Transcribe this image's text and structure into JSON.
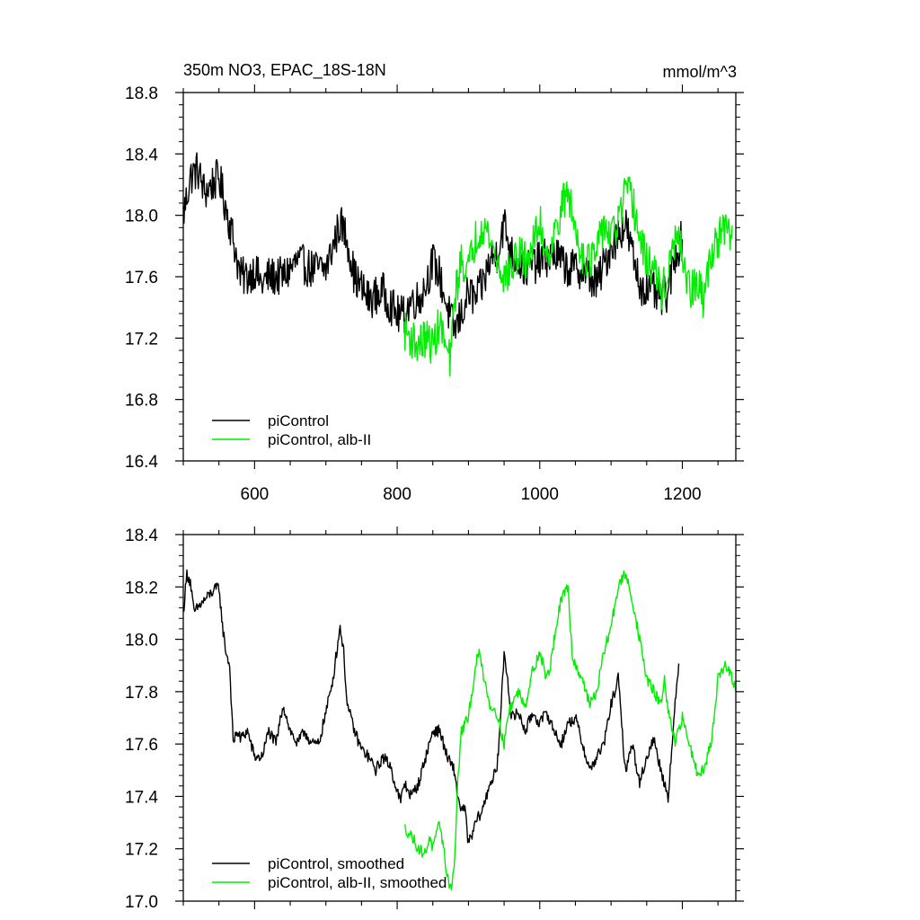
{
  "chart_data": [
    {
      "type": "line",
      "title": "350m NO3, EPAC_18S-18N",
      "units": "mmol/m^3",
      "xlim": [
        500,
        1275
      ],
      "ylim": [
        16.4,
        18.8
      ],
      "xticks": [
        600,
        800,
        1000,
        1200
      ],
      "yticks": [
        16.4,
        16.8,
        17.2,
        17.6,
        18.0,
        18.4,
        18.8
      ],
      "ytick_labels": [
        "16.4",
        "16.8",
        "17.2",
        "17.6",
        "18.0",
        "18.4",
        "18.8"
      ],
      "legend_position": "bottom-left",
      "series": [
        {
          "name": "piControl",
          "color": "#000000",
          "x": [
            500,
            510,
            520,
            530,
            540,
            550,
            560,
            570,
            580,
            590,
            600,
            610,
            620,
            640,
            660,
            680,
            700,
            710,
            720,
            730,
            740,
            760,
            780,
            800,
            810,
            820,
            830,
            840,
            850,
            860,
            870,
            880,
            890,
            900,
            910,
            920,
            930,
            940,
            950,
            960,
            980,
            1000,
            1020,
            1040,
            1060,
            1080,
            1100,
            1120,
            1140,
            1160,
            1170,
            1180,
            1190,
            1200
          ],
          "y": [
            18.0,
            18.25,
            18.3,
            18.15,
            18.2,
            18.25,
            18.05,
            17.85,
            17.6,
            17.6,
            17.65,
            17.55,
            17.6,
            17.6,
            17.7,
            17.65,
            17.65,
            17.8,
            17.95,
            17.85,
            17.6,
            17.45,
            17.5,
            17.35,
            17.35,
            17.45,
            17.45,
            17.55,
            17.7,
            17.6,
            17.4,
            17.25,
            17.35,
            17.5,
            17.45,
            17.55,
            17.7,
            17.75,
            17.95,
            17.75,
            17.65,
            17.7,
            17.75,
            17.65,
            17.65,
            17.55,
            17.8,
            17.95,
            17.55,
            17.5,
            17.45,
            17.5,
            17.75,
            17.85
          ]
        },
        {
          "name": "piControl, alb-II",
          "color": "#00ee00",
          "x": [
            810,
            820,
            830,
            840,
            850,
            860,
            870,
            875,
            880,
            890,
            900,
            910,
            920,
            930,
            940,
            950,
            960,
            970,
            980,
            990,
            1000,
            1010,
            1020,
            1030,
            1040,
            1050,
            1060,
            1070,
            1080,
            1090,
            1100,
            1110,
            1120,
            1130,
            1140,
            1150,
            1160,
            1170,
            1180,
            1190,
            1200,
            1210,
            1220,
            1230,
            1240,
            1250,
            1260,
            1270
          ],
          "y": [
            17.25,
            17.2,
            17.15,
            17.2,
            17.15,
            17.3,
            17.1,
            17.05,
            17.45,
            17.7,
            17.65,
            17.85,
            17.95,
            17.85,
            17.7,
            17.6,
            17.65,
            17.75,
            17.7,
            17.8,
            17.95,
            17.75,
            17.85,
            18.05,
            18.15,
            17.9,
            17.75,
            17.7,
            17.75,
            17.95,
            17.85,
            17.95,
            18.15,
            18.1,
            17.85,
            17.7,
            17.65,
            17.5,
            17.6,
            17.85,
            17.75,
            17.5,
            17.55,
            17.45,
            17.75,
            17.85,
            17.9,
            17.85
          ]
        }
      ]
    },
    {
      "type": "line",
      "xlim": [
        500,
        1275
      ],
      "ylim": [
        17.0,
        18.4
      ],
      "xticks": [
        600,
        800,
        1000,
        1200
      ],
      "yticks": [
        17.0,
        17.2,
        17.4,
        17.6,
        17.8,
        18.0,
        18.2,
        18.4
      ],
      "ytick_labels": [
        "17.0",
        "17.2",
        "17.4",
        "17.6",
        "17.8",
        "18.0",
        "18.2",
        "18.4"
      ],
      "legend_position": "bottom-left",
      "series": [
        {
          "name": "piControl, smoothed",
          "color": "#000000",
          "x": [
            500,
            505,
            510,
            515,
            520,
            530,
            540,
            550,
            555,
            560,
            565,
            570,
            575,
            580,
            590,
            600,
            610,
            620,
            630,
            640,
            650,
            660,
            670,
            680,
            690,
            700,
            710,
            720,
            725,
            730,
            740,
            750,
            760,
            770,
            780,
            790,
            800,
            805,
            810,
            820,
            830,
            840,
            850,
            860,
            870,
            880,
            885,
            890,
            895,
            900,
            905,
            910,
            920,
            930,
            940,
            945,
            950,
            955,
            960,
            970,
            980,
            990,
            1000,
            1010,
            1020,
            1030,
            1040,
            1050,
            1060,
            1070,
            1080,
            1090,
            1100,
            1110,
            1120,
            1130,
            1140,
            1150,
            1160,
            1170,
            1180,
            1190,
            1195
          ],
          "y": [
            18.1,
            18.25,
            18.22,
            18.1,
            18.12,
            18.15,
            18.18,
            18.2,
            18.05,
            17.95,
            17.9,
            17.6,
            17.65,
            17.62,
            17.65,
            17.55,
            17.55,
            17.65,
            17.6,
            17.75,
            17.65,
            17.6,
            17.65,
            17.6,
            17.6,
            17.72,
            17.85,
            18.05,
            17.95,
            17.75,
            17.65,
            17.58,
            17.55,
            17.5,
            17.55,
            17.52,
            17.42,
            17.38,
            17.45,
            17.4,
            17.45,
            17.55,
            17.65,
            17.65,
            17.55,
            17.5,
            17.4,
            17.35,
            17.35,
            17.22,
            17.25,
            17.3,
            17.35,
            17.45,
            17.5,
            17.7,
            17.95,
            17.85,
            17.7,
            17.72,
            17.65,
            17.72,
            17.68,
            17.72,
            17.65,
            17.6,
            17.68,
            17.7,
            17.6,
            17.5,
            17.55,
            17.6,
            17.75,
            17.85,
            17.5,
            17.6,
            17.45,
            17.55,
            17.62,
            17.5,
            17.4,
            17.75,
            17.9
          ]
        },
        {
          "name": "piControl, alb-II, smoothed",
          "color": "#00ee00",
          "x": [
            810,
            820,
            830,
            840,
            845,
            850,
            855,
            860,
            865,
            870,
            875,
            880,
            885,
            890,
            900,
            905,
            910,
            915,
            920,
            930,
            940,
            950,
            955,
            960,
            970,
            980,
            990,
            1000,
            1010,
            1015,
            1020,
            1030,
            1040,
            1045,
            1050,
            1060,
            1070,
            1080,
            1090,
            1100,
            1110,
            1120,
            1130,
            1140,
            1150,
            1160,
            1170,
            1175,
            1180,
            1190,
            1200,
            1210,
            1220,
            1230,
            1240,
            1250,
            1260,
            1270,
            1275
          ],
          "y": [
            17.28,
            17.25,
            17.2,
            17.18,
            17.25,
            17.2,
            17.25,
            17.3,
            17.2,
            17.1,
            17.05,
            17.12,
            17.45,
            17.65,
            17.7,
            17.8,
            17.9,
            17.95,
            17.88,
            17.75,
            17.72,
            17.6,
            17.7,
            17.75,
            17.8,
            17.75,
            17.88,
            17.95,
            17.85,
            17.9,
            18.0,
            18.15,
            18.2,
            17.95,
            17.9,
            17.85,
            17.75,
            17.8,
            17.95,
            18.05,
            18.2,
            18.25,
            18.15,
            18.0,
            17.85,
            17.8,
            17.75,
            17.85,
            17.72,
            17.6,
            17.7,
            17.6,
            17.5,
            17.5,
            17.6,
            17.85,
            17.9,
            17.85,
            17.8
          ]
        }
      ]
    }
  ]
}
